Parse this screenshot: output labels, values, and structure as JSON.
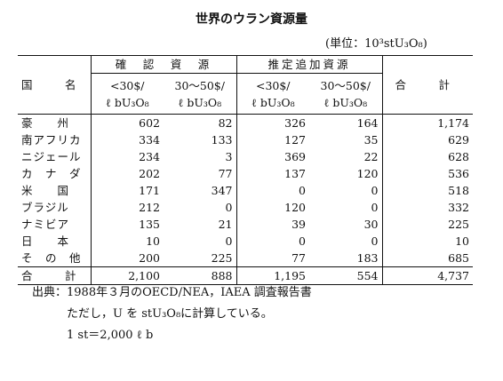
{
  "title": "世界のウラン資源量",
  "unit": "(単位：10³stU₃O₈)",
  "table": {
    "header": {
      "country": "国　名",
      "confirmed": "確　認　資　源",
      "estimated": "推定追加資源",
      "total": "合　計",
      "sub": [
        "<30$/ ℓ bU₃O₈",
        "30～50$/ ℓ bU₃O₈",
        "<30$/ ℓ bU₃O₈",
        "30～50$/ ℓ bU₃O₈"
      ]
    },
    "rows": [
      {
        "country": "豪　　州",
        "values": [
          "602",
          "82",
          "326",
          "164",
          "1,174"
        ]
      },
      {
        "country": "南アフリカ",
        "values": [
          "334",
          "133",
          "127",
          "35",
          "629"
        ]
      },
      {
        "country": "ニジェール",
        "values": [
          "234",
          "3",
          "369",
          "22",
          "628"
        ]
      },
      {
        "country": "カ　ナ　ダ",
        "values": [
          "202",
          "77",
          "137",
          "120",
          "536"
        ]
      },
      {
        "country": "米　　国",
        "values": [
          "171",
          "347",
          "0",
          "0",
          "518"
        ]
      },
      {
        "country": "ブラジル",
        "values": [
          "212",
          "0",
          "120",
          "0",
          "332"
        ]
      },
      {
        "country": "ナミビア",
        "values": [
          "135",
          "21",
          "39",
          "30",
          "225"
        ]
      },
      {
        "country": "日　　本",
        "values": [
          "10",
          "0",
          "0",
          "0",
          "10"
        ]
      },
      {
        "country": "そ　の　他",
        "values": [
          "200",
          "225",
          "77",
          "183",
          "685"
        ]
      }
    ],
    "total": {
      "label": "合　計",
      "values": [
        "2,100",
        "888",
        "1,195",
        "554",
        "4,737"
      ]
    }
  },
  "notes": [
    "出典：1988年３月のOECD/NEA，IAEA 調査報告書",
    "　　　ただし，U を stU₃O₈に計算している。",
    "　　　1 st＝2,000 ℓ b"
  ]
}
